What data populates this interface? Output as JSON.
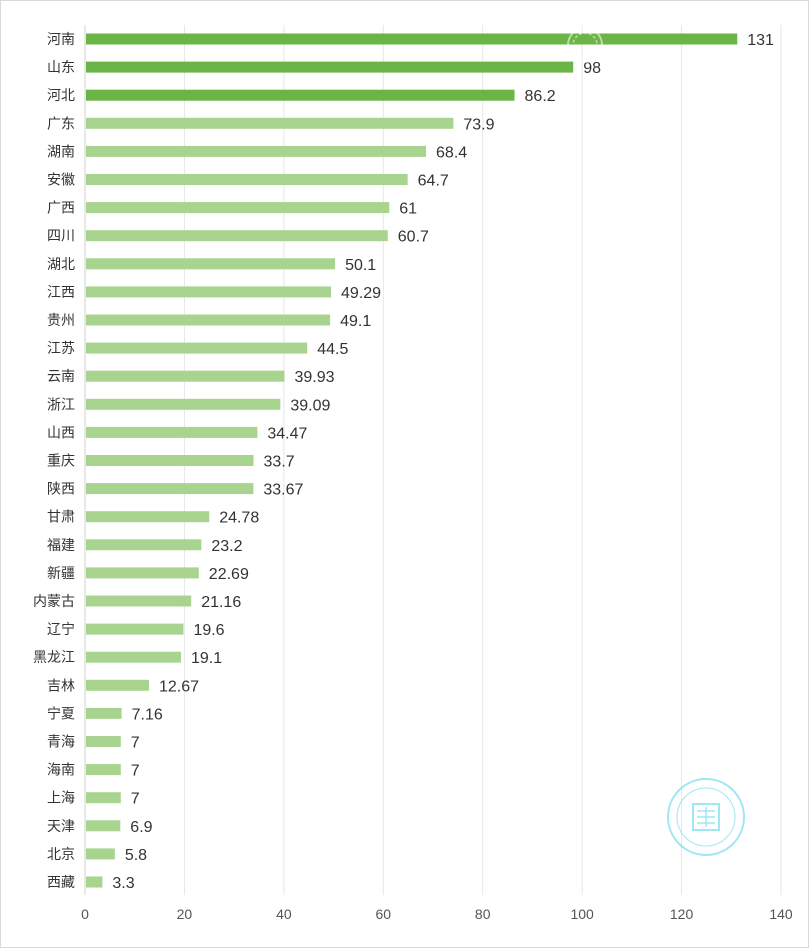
{
  "colors": {
    "top_bar": "#6ab545",
    "bar": "#a9d48f",
    "watermark": "#7fdff0"
  },
  "chart_data": {
    "type": "bar",
    "orientation": "horizontal",
    "title": "",
    "xlabel": "",
    "ylabel": "",
    "xlim": [
      0,
      140
    ],
    "ticks": [
      "0",
      "20",
      "40",
      "60",
      "80",
      "100",
      "120",
      "140"
    ],
    "grid": true,
    "legend": "none",
    "highlighted_count": 3,
    "categories": [
      "河南",
      "山东",
      "河北",
      "广东",
      "湖南",
      "安徽",
      "广西",
      "四川",
      "湖北",
      "江西",
      "贵州",
      "江苏",
      "云南",
      "浙江",
      "山西",
      "重庆",
      "陕西",
      "甘肃",
      "福建",
      "新疆",
      "内蒙古",
      "辽宁",
      "黑龙江",
      "吉林",
      "宁夏",
      "青海",
      "海南",
      "上海",
      "天津",
      "北京",
      "西藏"
    ],
    "values": [
      131,
      98,
      86.2,
      73.9,
      68.4,
      64.7,
      61,
      60.7,
      50.1,
      49.29,
      49.1,
      44.5,
      39.93,
      39.09,
      34.47,
      33.7,
      33.67,
      24.78,
      23.2,
      22.69,
      21.16,
      19.6,
      19.1,
      12.67,
      7.16,
      7,
      7,
      7,
      6.9,
      5.8,
      3.3
    ],
    "value_labels": [
      "131",
      "98",
      "86.2",
      "73.9",
      "68.4",
      "64.7",
      "61",
      "60.7",
      "50.1",
      "49.29",
      "49.1",
      "44.5",
      "39.93",
      "39.09",
      "34.47",
      "33.7",
      "33.67",
      "24.78",
      "23.2",
      "22.69",
      "21.16",
      "19.6",
      "19.1",
      "12.67",
      "7.16",
      "7",
      "7",
      "7",
      "6.9",
      "5.8",
      "3.3"
    ]
  }
}
